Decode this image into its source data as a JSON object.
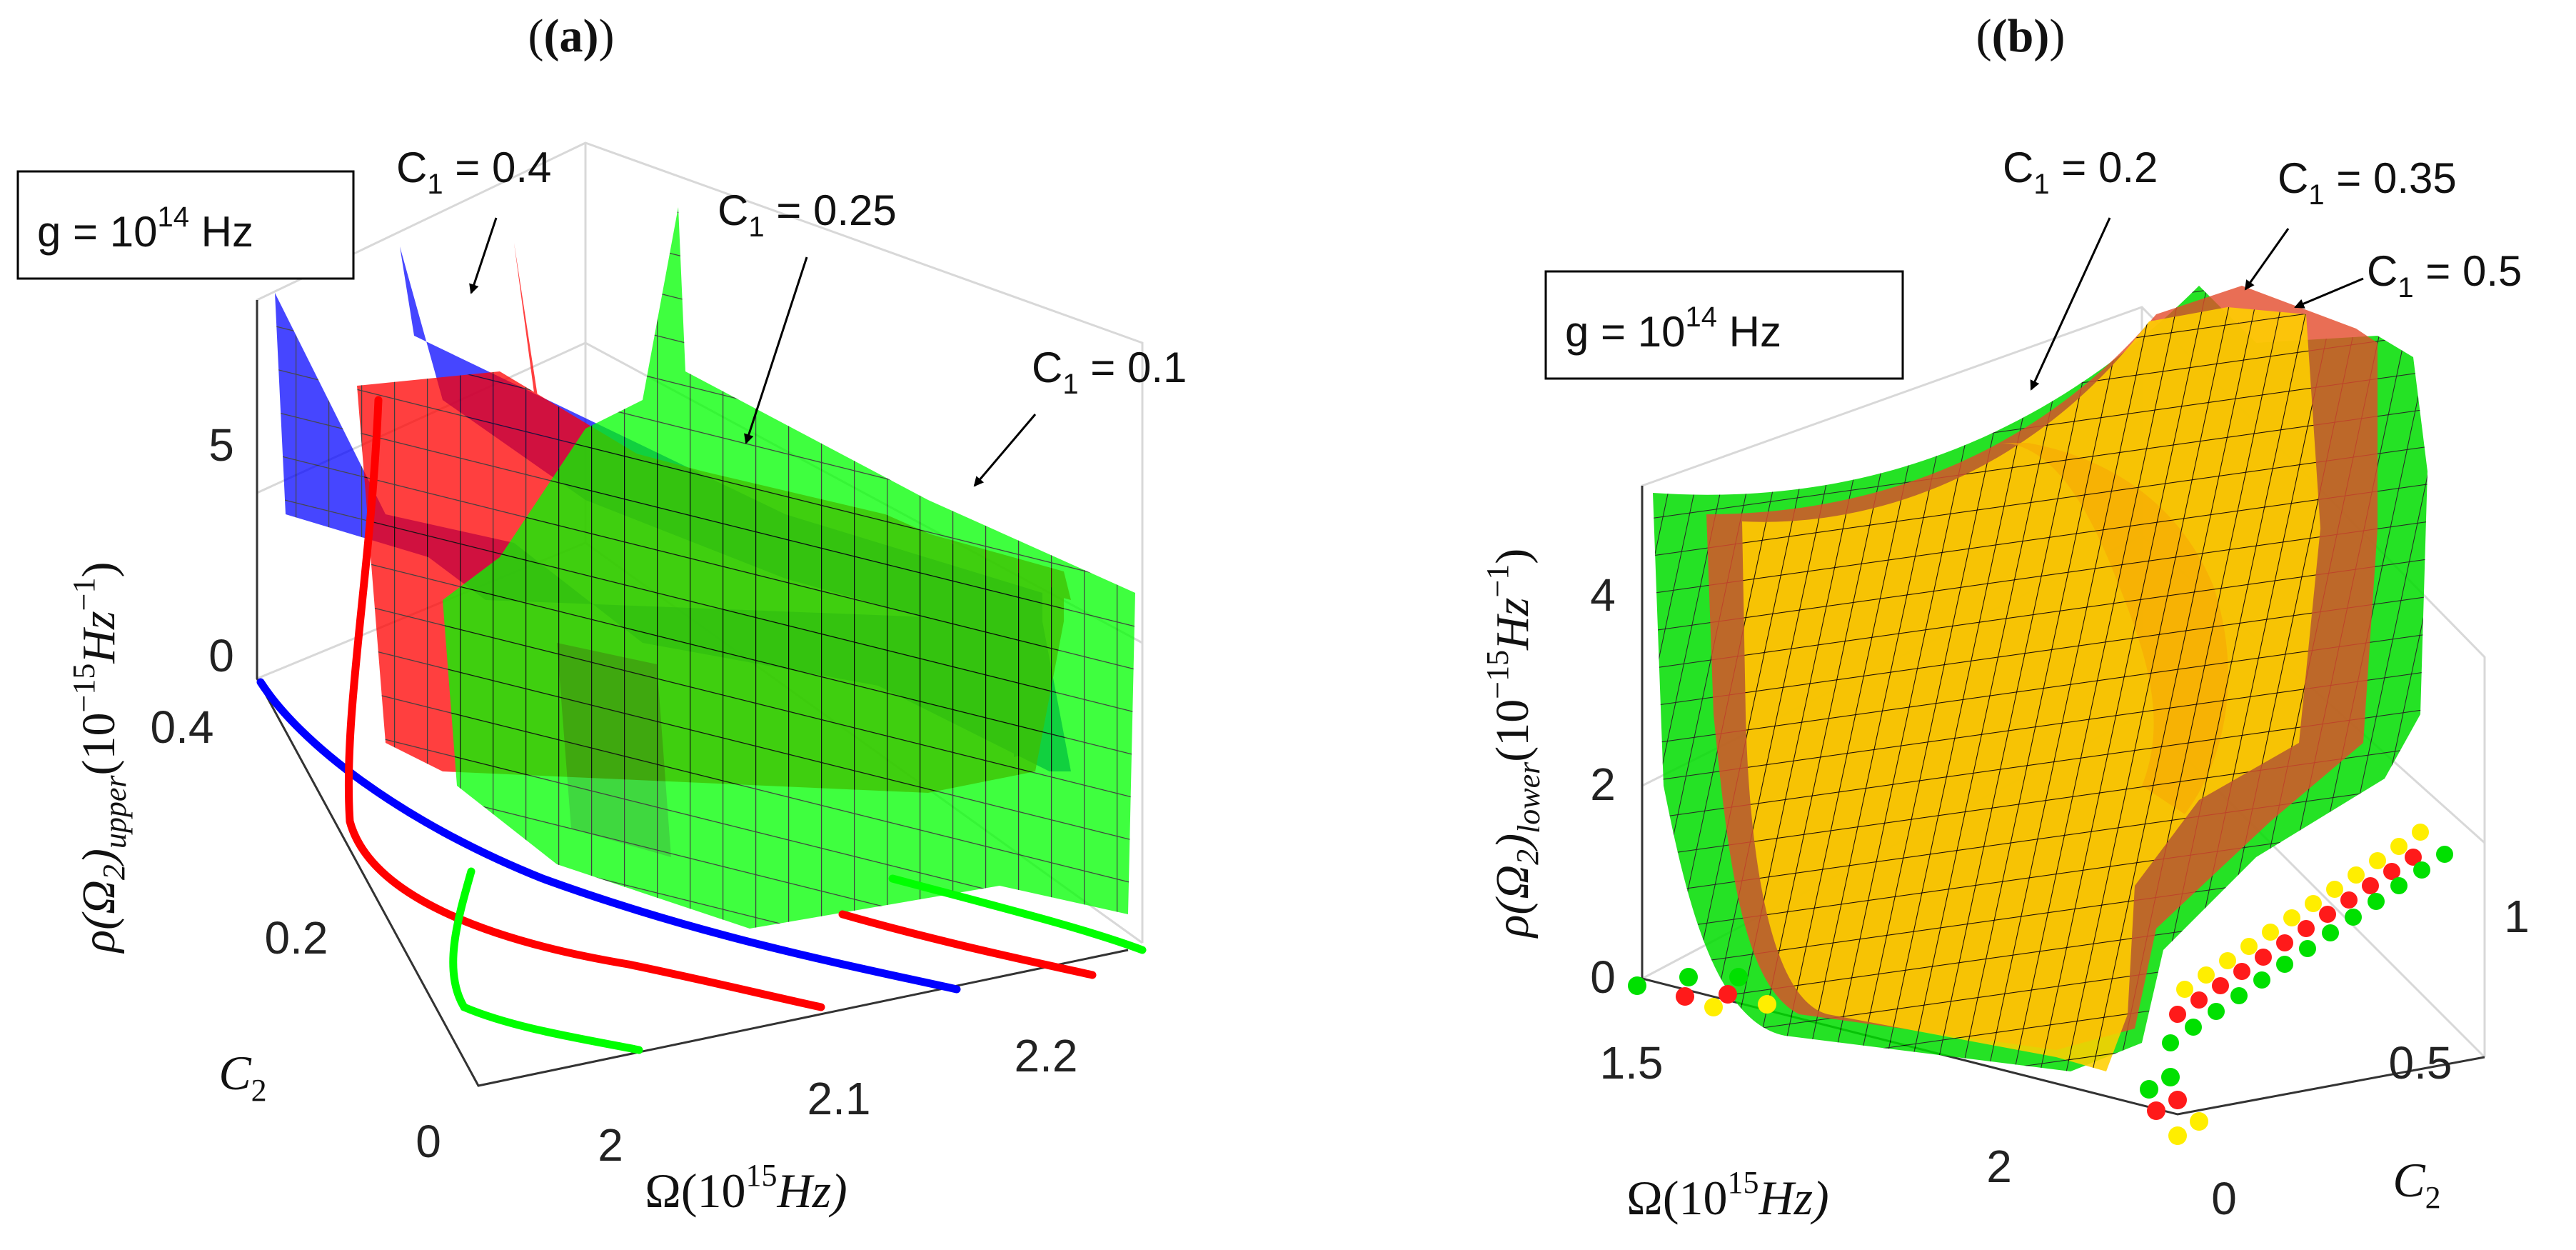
{
  "chart_data": [
    {
      "panel": "(a)",
      "type": "surface3d",
      "title": "(a)",
      "note": "g = 10^14 Hz",
      "note_parts": {
        "base": "g = 10",
        "exp": "14",
        "unit": " Hz"
      },
      "zlabel": "ρ(Ω2)upper(10−15Hz−1)",
      "zlabel_parts": {
        "rho": "ρ(Ω",
        "sub2": "2",
        "close": ")",
        "sub": "upper",
        "unit": "(10",
        "exp1": "−15",
        "hz": "Hz",
        "exp2": "−1",
        "end": ")"
      },
      "xlabel": "Ω(10^15 Hz)",
      "xlabel_parts": {
        "a": "Ω(10",
        "exp": "15",
        "b": "Hz)"
      },
      "ylabel": "C2",
      "ylabel_parts": {
        "a": "C",
        "sub": "2"
      },
      "ztick_labels": [
        "0",
        "5"
      ],
      "xtick_labels": [
        "2",
        "2.1",
        "2.2"
      ],
      "ytick_labels": [
        "0",
        "0.2",
        "0.4"
      ],
      "xlim": [
        1.95,
        2.25
      ],
      "ylim": [
        0,
        0.45
      ],
      "zlim": [
        0,
        8
      ],
      "series": [
        {
          "name": "C1 = 0.4",
          "color": "#0000ff",
          "label": "C",
          "label_sub": "1",
          "label_val": " = 0.4"
        },
        {
          "name": "C1 = 0.25",
          "color": "#ff0000",
          "label": "C",
          "label_sub": "1",
          "label_val": " = 0.25"
        },
        {
          "name": "C1 = 0.1",
          "color": "#00ff00",
          "label": "C",
          "label_sub": "1",
          "label_val": " = 0.1"
        }
      ]
    },
    {
      "panel": "(b)",
      "type": "surface3d",
      "title": "(b)",
      "note": "g = 10^14 Hz",
      "note_parts": {
        "base": "g = 10",
        "exp": "14",
        "unit": " Hz"
      },
      "zlabel": "ρ(Ω2)lower(10−15Hz−1)",
      "zlabel_parts": {
        "rho": "ρ(Ω",
        "sub2": "2",
        "close": ")",
        "sub": "lower",
        "unit": "(10",
        "exp1": "−15",
        "hz": "Hz",
        "exp2": "−1",
        "end": ")"
      },
      "xlabel": "Ω(10^15 Hz)",
      "xlabel_parts": {
        "a": "Ω(10",
        "exp": "15",
        "b": "Hz)"
      },
      "ylabel": "C2",
      "ylabel_parts": {
        "a": "C",
        "sub": "2"
      },
      "ztick_labels": [
        "0",
        "2",
        "4"
      ],
      "xtick_labels": [
        "1.5",
        "2"
      ],
      "ytick_labels": [
        "0",
        "0.5",
        "1"
      ],
      "xlim": [
        1.4,
        2.2
      ],
      "ylim": [
        0,
        1
      ],
      "zlim": [
        0,
        5
      ],
      "series": [
        {
          "name": "C1 = 0.2",
          "color": "#00ee00",
          "label": "C",
          "label_sub": "1",
          "label_val": " = 0.2"
        },
        {
          "name": "C1 = 0.35",
          "color": "#ff3b3b",
          "label": "C",
          "label_sub": "1",
          "label_val": " = 0.35"
        },
        {
          "name": "C1 = 0.5",
          "color": "#ffe000",
          "label": "C",
          "label_sub": "1",
          "label_val": " = 0.5"
        }
      ]
    }
  ]
}
